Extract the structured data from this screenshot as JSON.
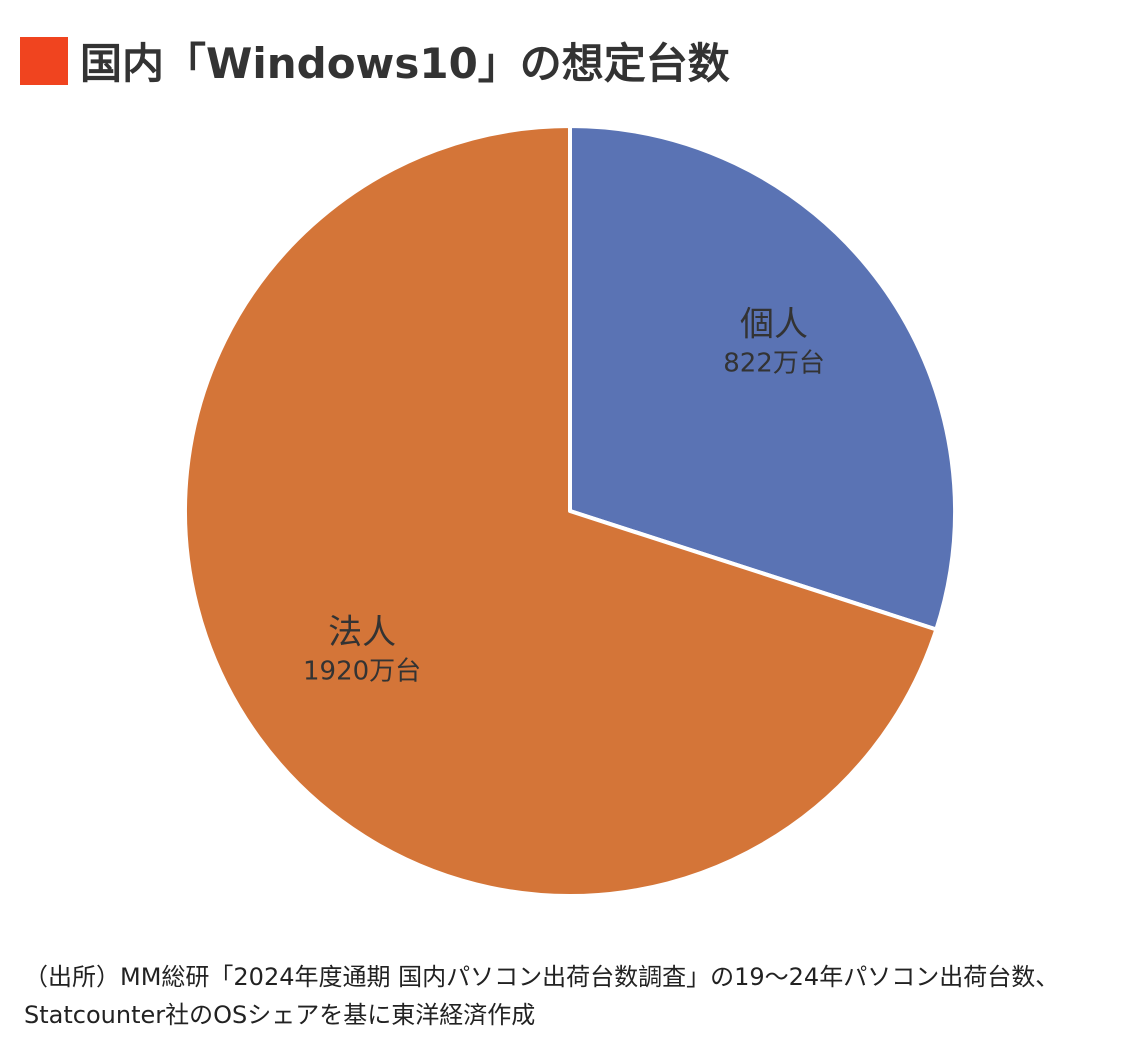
{
  "title": "国内「Windows10」の想定台数",
  "colors": {
    "title_marker": "#F0441F",
    "private": "#5A73B4",
    "corporate": "#D47538",
    "text": "#333333",
    "divider": "#FFFFFF"
  },
  "chart_data": {
    "type": "pie",
    "title": "国内「Windows10」の想定台数",
    "slices": [
      {
        "name": "個人",
        "value": 822,
        "label": "822万台",
        "color": "#5A73B4"
      },
      {
        "name": "法人",
        "value": 1920,
        "label": "1920万台",
        "color": "#D47538"
      }
    ],
    "unit": "万台",
    "start": "12 o'clock",
    "direction": "clockwise"
  },
  "source": "（出所）MM総研「2024年度通期 国内パソコン出荷台数調査」の19〜24年パソコン出荷台数、Statcounter社のOSシェアを基に東洋経済作成"
}
